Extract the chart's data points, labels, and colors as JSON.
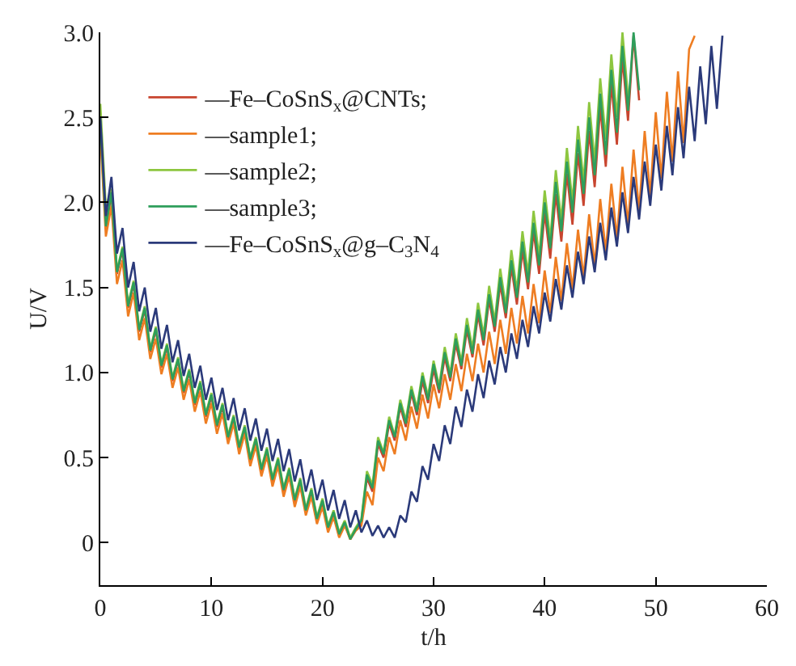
{
  "chart_data": {
    "type": "line",
    "xlabel": "t/h",
    "ylabel": "U/V",
    "xlim": [
      0,
      60
    ],
    "xticks": [
      0,
      10,
      20,
      30,
      40,
      50,
      60
    ],
    "ylim": [
      -0.25,
      3.0
    ],
    "yticks": [
      0,
      0.5,
      {
        "value": 1,
        "label": "1.0"
      },
      1.5,
      {
        "value": 2,
        "label": "2.0"
      },
      2.5,
      {
        "value": 3,
        "label": "3.0"
      }
    ],
    "legend": "top left",
    "marker": "none",
    "line_style": "solid",
    "x": [
      0,
      0.5,
      1,
      1.5,
      2,
      2.5,
      3,
      3.5,
      4,
      4.5,
      5,
      5.5,
      6,
      6.5,
      7,
      7.5,
      8,
      8.5,
      9,
      9.5,
      10,
      10.5,
      11,
      11.5,
      12,
      12.5,
      13,
      13.5,
      14,
      14.5,
      15,
      15.5,
      16,
      16.5,
      17,
      17.5,
      18,
      18.5,
      19,
      19.5,
      20,
      20.5,
      21,
      21.5,
      22,
      22.5,
      23,
      23.5,
      24,
      24.5,
      25,
      25.5,
      26,
      26.5,
      27,
      27.5,
      28,
      28.5,
      29,
      29.5,
      30,
      30.5,
      31,
      31.5,
      32,
      32.5,
      33,
      33.5,
      34,
      34.5,
      35,
      35.5,
      36,
      36.5,
      37,
      37.5,
      38,
      38.5,
      39,
      39.5,
      40,
      40.5,
      41,
      41.5,
      42,
      42.5,
      43,
      43.5,
      44,
      44.5,
      45,
      45.5,
      46,
      46.5,
      47,
      47.5,
      48,
      48.5,
      49,
      49.5,
      50,
      50.5,
      51,
      51.5,
      52,
      52.5,
      53,
      53.5,
      54,
      54.5,
      55,
      55.5,
      56
    ],
    "series": [
      {
        "name": "—Fe–CoSnS$_{x}$@CNTs;",
        "color": "#c8452f",
        "values": [
          2.45,
          1.85,
          2.05,
          1.58,
          1.72,
          1.38,
          1.52,
          1.24,
          1.37,
          1.12,
          1.25,
          1.03,
          1.15,
          0.95,
          1.07,
          0.88,
          1.0,
          0.81,
          0.93,
          0.74,
          0.86,
          0.68,
          0.8,
          0.61,
          0.73,
          0.55,
          0.67,
          0.48,
          0.6,
          0.42,
          0.54,
          0.36,
          0.48,
          0.3,
          0.42,
          0.24,
          0.36,
          0.18,
          0.3,
          0.13,
          0.24,
          0.08,
          0.17,
          0.04,
          0.11,
          0.02,
          0.08,
          0.12,
          0.38,
          0.3,
          0.58,
          0.5,
          0.7,
          0.6,
          0.8,
          0.68,
          0.88,
          0.75,
          0.95,
          0.82,
          1.02,
          0.88,
          1.09,
          0.95,
          1.17,
          1.02,
          1.25,
          1.09,
          1.34,
          1.16,
          1.43,
          1.24,
          1.52,
          1.32,
          1.62,
          1.4,
          1.72,
          1.49,
          1.83,
          1.58,
          1.94,
          1.67,
          2.05,
          1.77,
          2.17,
          1.87,
          2.29,
          1.98,
          2.42,
          2.09,
          2.56,
          2.21,
          2.7,
          2.34,
          2.85,
          2.48,
          2.98,
          2.6,
          null,
          null,
          null,
          null,
          null,
          null,
          null,
          null,
          null,
          null,
          null,
          null,
          null,
          null,
          null
        ]
      },
      {
        "name": "—sample1;",
        "color": "#ee7d22",
        "values": [
          2.4,
          1.8,
          1.98,
          1.52,
          1.66,
          1.33,
          1.47,
          1.19,
          1.32,
          1.08,
          1.2,
          0.99,
          1.11,
          0.91,
          1.03,
          0.84,
          0.96,
          0.77,
          0.89,
          0.7,
          0.82,
          0.64,
          0.76,
          0.58,
          0.7,
          0.52,
          0.64,
          0.45,
          0.57,
          0.39,
          0.51,
          0.33,
          0.45,
          0.27,
          0.39,
          0.21,
          0.33,
          0.16,
          0.27,
          0.11,
          0.21,
          0.06,
          0.15,
          0.03,
          0.1,
          0.02,
          0.07,
          0.1,
          0.3,
          0.22,
          0.5,
          0.42,
          0.62,
          0.52,
          0.72,
          0.6,
          0.8,
          0.67,
          0.87,
          0.73,
          0.93,
          0.79,
          0.99,
          0.84,
          1.05,
          0.89,
          1.11,
          0.95,
          1.17,
          1.0,
          1.24,
          1.05,
          1.31,
          1.11,
          1.38,
          1.17,
          1.45,
          1.23,
          1.52,
          1.29,
          1.6,
          1.35,
          1.68,
          1.42,
          1.76,
          1.49,
          1.84,
          1.56,
          1.93,
          1.63,
          2.02,
          1.71,
          2.11,
          1.79,
          2.21,
          1.87,
          2.31,
          1.95,
          2.42,
          2.04,
          2.53,
          2.14,
          2.65,
          2.24,
          2.77,
          2.35,
          2.9,
          2.98,
          null,
          null,
          null,
          null,
          null
        ]
      },
      {
        "name": "—sample2;",
        "color": "#8dc63f",
        "values": [
          2.58,
          1.97,
          2.08,
          1.6,
          1.74,
          1.4,
          1.54,
          1.26,
          1.39,
          1.14,
          1.27,
          1.05,
          1.17,
          0.97,
          1.09,
          0.9,
          1.02,
          0.83,
          0.95,
          0.76,
          0.88,
          0.7,
          0.82,
          0.63,
          0.75,
          0.57,
          0.69,
          0.5,
          0.62,
          0.44,
          0.56,
          0.38,
          0.5,
          0.32,
          0.44,
          0.26,
          0.38,
          0.2,
          0.32,
          0.15,
          0.26,
          0.1,
          0.19,
          0.06,
          0.13,
          0.03,
          0.09,
          0.14,
          0.42,
          0.34,
          0.62,
          0.53,
          0.74,
          0.63,
          0.84,
          0.72,
          0.92,
          0.79,
          1.0,
          0.86,
          1.07,
          0.92,
          1.15,
          0.99,
          1.23,
          1.06,
          1.32,
          1.14,
          1.41,
          1.22,
          1.51,
          1.3,
          1.61,
          1.39,
          1.72,
          1.48,
          1.83,
          1.58,
          1.95,
          1.68,
          2.07,
          1.78,
          2.19,
          1.89,
          2.32,
          2.0,
          2.45,
          2.12,
          2.59,
          2.24,
          2.73,
          2.37,
          2.87,
          2.5,
          3.0,
          2.62,
          null,
          null,
          null,
          null,
          null,
          null,
          null,
          null,
          null,
          null,
          null,
          null,
          null,
          null,
          null,
          null,
          null
        ]
      },
      {
        "name": "—sample3;",
        "color": "#2e9e5b",
        "values": [
          2.48,
          1.86,
          2.06,
          1.59,
          1.73,
          1.39,
          1.53,
          1.25,
          1.38,
          1.13,
          1.26,
          1.04,
          1.16,
          0.96,
          1.08,
          0.89,
          1.01,
          0.82,
          0.94,
          0.75,
          0.87,
          0.69,
          0.81,
          0.62,
          0.74,
          0.56,
          0.68,
          0.49,
          0.61,
          0.43,
          0.55,
          0.37,
          0.49,
          0.31,
          0.43,
          0.25,
          0.37,
          0.19,
          0.31,
          0.14,
          0.25,
          0.09,
          0.18,
          0.05,
          0.12,
          0.02,
          0.08,
          0.13,
          0.4,
          0.32,
          0.6,
          0.52,
          0.72,
          0.62,
          0.82,
          0.7,
          0.9,
          0.77,
          0.98,
          0.84,
          1.05,
          0.9,
          1.12,
          0.97,
          1.2,
          1.04,
          1.28,
          1.11,
          1.37,
          1.19,
          1.46,
          1.27,
          1.56,
          1.35,
          1.66,
          1.44,
          1.77,
          1.53,
          1.88,
          1.63,
          2.0,
          1.73,
          2.12,
          1.83,
          2.24,
          1.94,
          2.37,
          2.05,
          2.5,
          2.16,
          2.64,
          2.28,
          2.78,
          2.41,
          2.92,
          2.54,
          3.0,
          2.66,
          null,
          null,
          null,
          null,
          null,
          null,
          null,
          null,
          null,
          null,
          null,
          null,
          null,
          null,
          null
        ]
      },
      {
        "name": "—Fe–CoSnS$_{x}$@g–C$_{3}$N$_{4}$",
        "color": "#2b3a7a",
        "values": [
          2.5,
          1.92,
          2.15,
          1.7,
          1.85,
          1.5,
          1.65,
          1.36,
          1.5,
          1.24,
          1.38,
          1.14,
          1.28,
          1.06,
          1.19,
          0.98,
          1.11,
          0.91,
          1.04,
          0.84,
          0.97,
          0.78,
          0.91,
          0.72,
          0.85,
          0.66,
          0.79,
          0.6,
          0.73,
          0.54,
          0.67,
          0.48,
          0.61,
          0.42,
          0.55,
          0.36,
          0.49,
          0.3,
          0.43,
          0.25,
          0.37,
          0.19,
          0.31,
          0.14,
          0.25,
          0.09,
          0.19,
          0.06,
          0.13,
          0.04,
          0.1,
          0.03,
          0.09,
          0.03,
          0.16,
          0.12,
          0.3,
          0.24,
          0.45,
          0.37,
          0.58,
          0.48,
          0.69,
          0.58,
          0.8,
          0.68,
          0.9,
          0.77,
          0.99,
          0.85,
          1.07,
          0.93,
          1.15,
          1.0,
          1.23,
          1.08,
          1.31,
          1.15,
          1.39,
          1.23,
          1.47,
          1.3,
          1.55,
          1.37,
          1.63,
          1.44,
          1.71,
          1.52,
          1.8,
          1.59,
          1.88,
          1.66,
          1.97,
          1.74,
          2.06,
          1.82,
          2.15,
          1.9,
          2.24,
          1.98,
          2.34,
          2.07,
          2.45,
          2.16,
          2.56,
          2.26,
          2.68,
          2.36,
          2.8,
          2.46,
          2.92,
          2.55,
          2.98
        ]
      }
    ]
  }
}
